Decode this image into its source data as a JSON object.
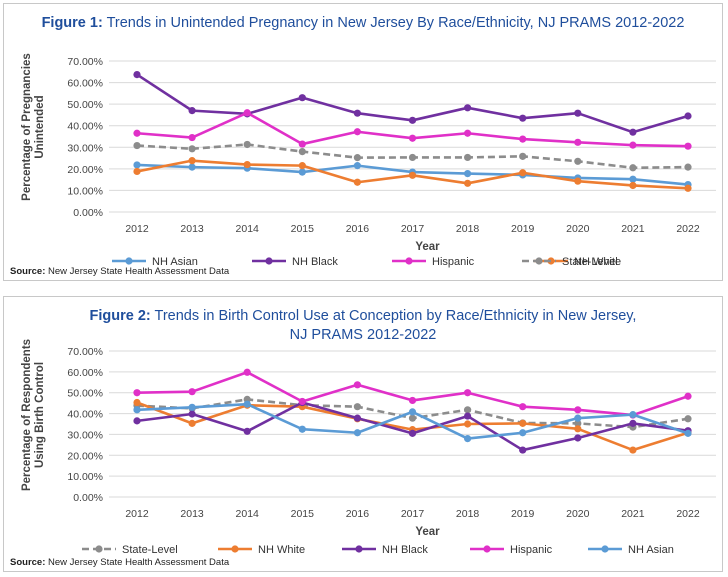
{
  "source_label": "Source:",
  "source_text": " New Jersey State Health Assessment Data",
  "chart_data": [
    {
      "type": "line",
      "title_bold": "Figure 1:",
      "title_rest": " Trends in Unintended Pregnancy in New Jersey By Race/Ethnicity, NJ PRAMS 2012-2022",
      "xlabel": "Year",
      "ylabel": "Percentage of Pregnancies Unintended",
      "x": [
        "2012",
        "2013",
        "2014",
        "2015",
        "2016",
        "2017",
        "2018",
        "2019",
        "2020",
        "2021",
        "2022"
      ],
      "ylim": [
        0,
        70
      ],
      "yticks": [
        "0.00%",
        "10.00%",
        "20.00%",
        "30.00%",
        "40.00%",
        "50.00%",
        "60.00%",
        "70.00%"
      ],
      "grid": true,
      "legend_position": "bottom",
      "series": [
        {
          "name": "NH Asian",
          "color": "#5b9bd5",
          "dashed": false,
          "values": [
            21.8,
            20.8,
            20.3,
            18.5,
            21.5,
            18.5,
            17.8,
            17.2,
            15.8,
            15.2,
            12.7
          ]
        },
        {
          "name": "NH Black",
          "color": "#7030a0",
          "dashed": false,
          "values": [
            63.7,
            47.0,
            45.5,
            53.0,
            45.8,
            42.5,
            48.3,
            43.5,
            45.8,
            37.0,
            44.5
          ]
        },
        {
          "name": "Hispanic",
          "color": "#e030c8",
          "dashed": false,
          "values": [
            36.5,
            34.5,
            46.0,
            31.5,
            37.2,
            34.2,
            36.5,
            33.8,
            32.3,
            31.0,
            30.5
          ]
        },
        {
          "name": "NH White",
          "color": "#ed7d31",
          "dashed": false,
          "values": [
            18.8,
            23.8,
            22.0,
            21.5,
            13.8,
            17.0,
            13.3,
            18.2,
            14.3,
            12.3,
            11.0
          ]
        },
        {
          "name": "State-Level",
          "color": "#8c8c8c",
          "dashed": true,
          "values": [
            30.8,
            29.3,
            31.3,
            28.0,
            25.2,
            25.3,
            25.3,
            25.8,
            23.5,
            20.5,
            20.8
          ]
        }
      ]
    },
    {
      "type": "line",
      "title_bold": "Figure 2:",
      "title_rest": " Trends in Birth Control Use at Conception by Race/Ethnicity in New Jersey, NJ PRAMS 2012-2022",
      "xlabel": "Year",
      "ylabel": "Percentage of Respondents Using Birth Control",
      "x": [
        "2012",
        "2013",
        "2014",
        "2015",
        "2016",
        "2017",
        "2018",
        "2019",
        "2020",
        "2021",
        "2022"
      ],
      "ylim": [
        0,
        70
      ],
      "yticks": [
        "0.00%",
        "10.00%",
        "20.00%",
        "30.00%",
        "40.00%",
        "50.00%",
        "60.00%",
        "70.00%"
      ],
      "grid": true,
      "legend_position": "bottom",
      "series": [
        {
          "name": "State-Level",
          "color": "#8c8c8c",
          "dashed": true,
          "values": [
            43.8,
            42.5,
            46.8,
            44.0,
            43.3,
            37.8,
            41.8,
            35.5,
            35.3,
            33.5,
            37.5
          ]
        },
        {
          "name": "NH White",
          "color": "#ed7d31",
          "dashed": false,
          "values": [
            45.3,
            35.3,
            44.0,
            43.3,
            37.5,
            32.3,
            35.0,
            35.3,
            32.7,
            22.5,
            30.8
          ]
        },
        {
          "name": "NH Black",
          "color": "#7030a0",
          "dashed": false,
          "values": [
            36.5,
            39.8,
            31.5,
            45.3,
            37.8,
            30.5,
            38.8,
            22.5,
            28.3,
            35.3,
            31.8
          ]
        },
        {
          "name": "Hispanic",
          "color": "#e030c8",
          "dashed": false,
          "values": [
            50.0,
            50.5,
            59.8,
            45.8,
            53.8,
            46.3,
            50.0,
            43.3,
            41.8,
            39.3,
            48.3
          ]
        },
        {
          "name": "NH Asian",
          "color": "#5b9bd5",
          "dashed": false,
          "values": [
            41.8,
            43.0,
            44.5,
            32.5,
            30.8,
            40.8,
            28.0,
            30.8,
            37.8,
            39.5,
            30.5
          ]
        }
      ]
    }
  ]
}
